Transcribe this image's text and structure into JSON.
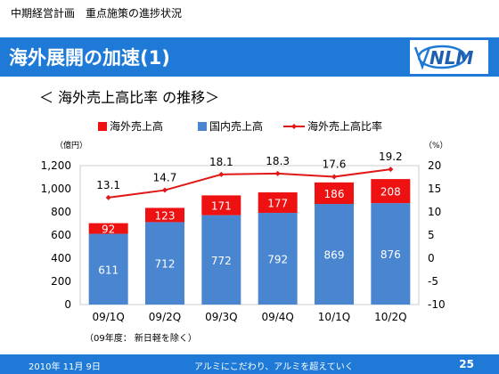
{
  "header": {
    "breadcrumb": "中期経営計画　重点施策の進捗状況",
    "title": "海外展開の加速(1)",
    "logo_text": "NLM",
    "brand_color": "#1e7ad6"
  },
  "section_title": "＜ 海外売上高比率 の推移＞",
  "chart_data": {
    "type": "bar",
    "stacked": true,
    "categories": [
      "09/1Q",
      "09/2Q",
      "09/3Q",
      "09/4Q",
      "10/1Q",
      "10/2Q"
    ],
    "series": [
      {
        "name": "国内売上高",
        "values": [
          611,
          712,
          772,
          792,
          869,
          876
        ],
        "color": "#4a86d0",
        "axis": "left"
      },
      {
        "name": "海外売上高",
        "values": [
          92,
          123,
          171,
          177,
          186,
          208
        ],
        "color": "#ee1111",
        "axis": "left"
      },
      {
        "name": "海外売上高比率",
        "type": "line",
        "values": [
          13.1,
          14.7,
          18.1,
          18.3,
          17.6,
          19.2
        ],
        "color": "#e01818",
        "axis": "right"
      }
    ],
    "legend_order": [
      "海外売上高",
      "国内売上高",
      "海外売上高比率"
    ],
    "legend_position": "top",
    "y_left": {
      "unit": "（億円）",
      "ylim": [
        0,
        1200
      ],
      "ticks": [
        "0",
        "200",
        "400",
        "600",
        "800",
        "1,000",
        "1,200"
      ]
    },
    "y_right": {
      "unit": "（%）",
      "ylim": [
        -10,
        20
      ],
      "ticks": [
        "-10",
        "-5",
        "0",
        "5",
        "10",
        "15",
        "20"
      ]
    },
    "note": "（09年度：  新日軽を除く）",
    "grid": false
  },
  "footer": {
    "date": "2010年 11月 9日",
    "slogan": "アルミにこだわり、アルミを超えていく",
    "page": "25"
  }
}
